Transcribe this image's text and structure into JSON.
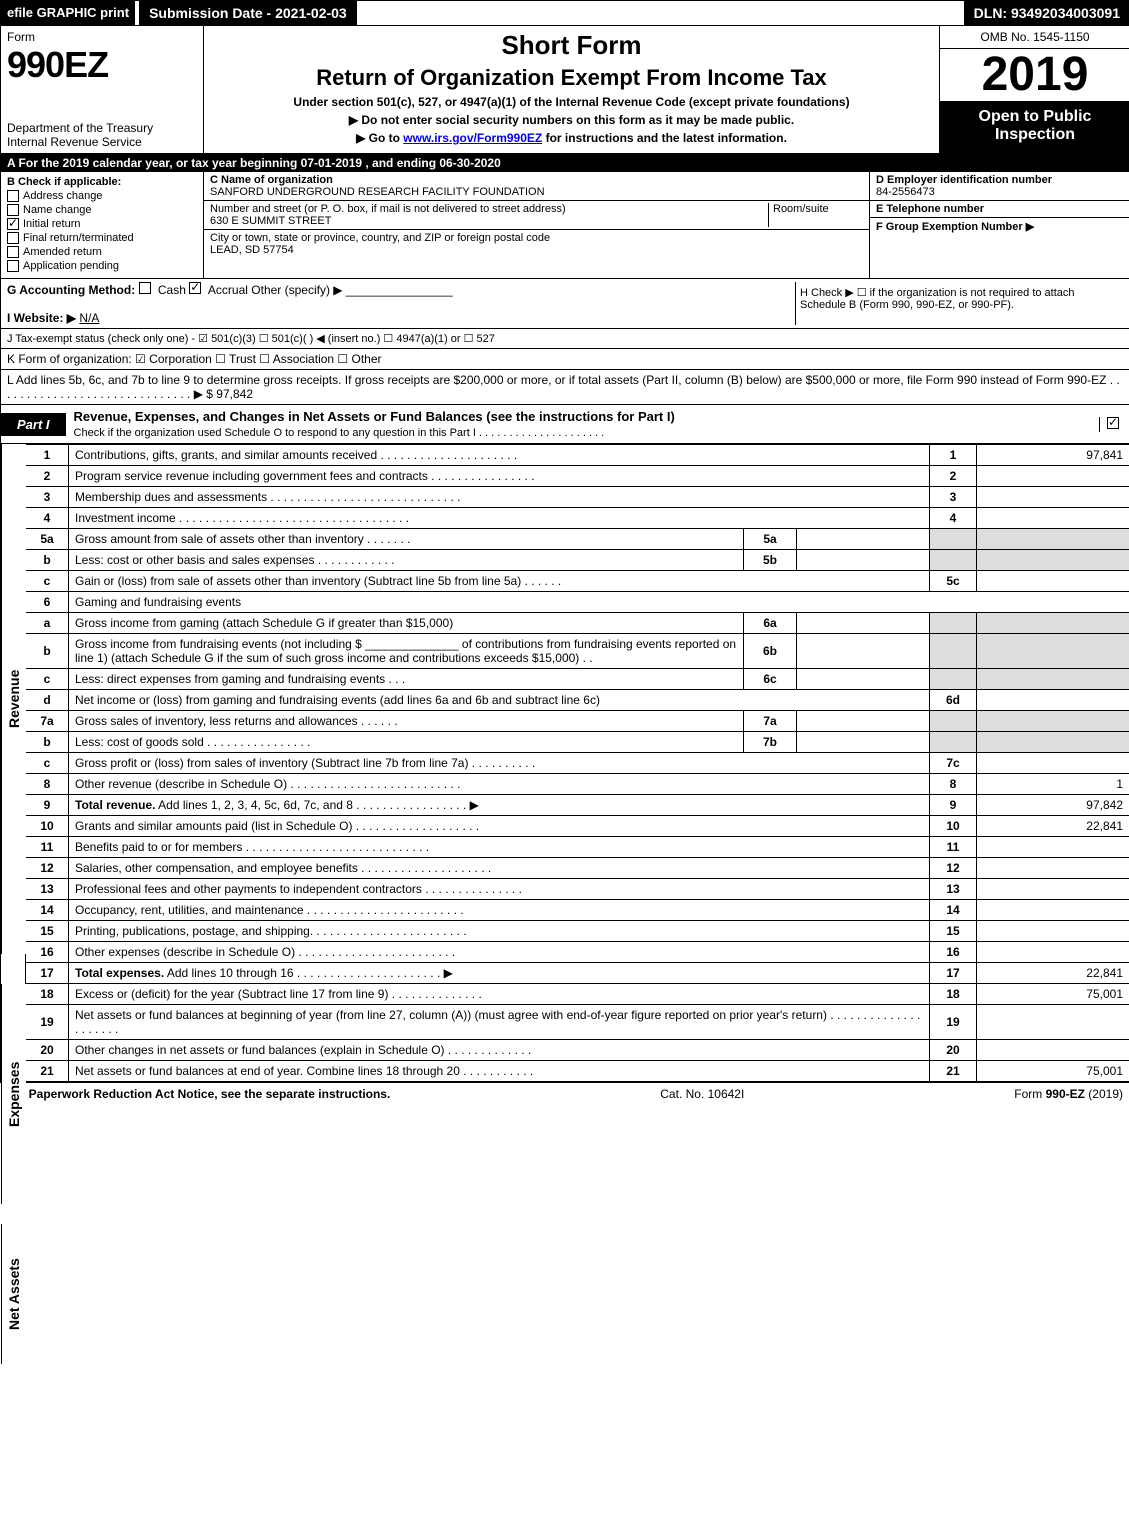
{
  "colors": {
    "black": "#000000",
    "white": "#ffffff",
    "shaded": "#dddddd",
    "link": "#0000ee"
  },
  "top_bar": {
    "efile_label": "efile GRAPHIC print",
    "submission_label": "Submission Date - 2021-02-03",
    "dln_label": "DLN: 93492034003091"
  },
  "header": {
    "form_label": "Form",
    "form_number": "990EZ",
    "dept_line1": "Department of the Treasury",
    "dept_line2": "Internal Revenue Service",
    "short_form": "Short Form",
    "return_title": "Return of Organization Exempt From Income Tax",
    "under_section": "Under section 501(c), 527, or 4947(a)(1) of the Internal Revenue Code (except private foundations)",
    "no_ssn": "▶ Do not enter social security numbers on this form as it may be made public.",
    "goto_prefix": "▶ Go to ",
    "goto_link": "www.irs.gov/Form990EZ",
    "goto_suffix": " for instructions and the latest information.",
    "omb": "OMB No. 1545-1150",
    "tax_year": "2019",
    "open_public": "Open to Public Inspection"
  },
  "section_a": "A For the 2019 calendar year, or tax year beginning 07-01-2019 , and ending 06-30-2020",
  "col_b": {
    "title": "B  Check if applicable:",
    "items": [
      {
        "label": "Address change",
        "checked": false
      },
      {
        "label": "Name change",
        "checked": false
      },
      {
        "label": "Initial return",
        "checked": true
      },
      {
        "label": "Final return/terminated",
        "checked": false
      },
      {
        "label": "Amended return",
        "checked": false
      },
      {
        "label": "Application pending",
        "checked": false
      }
    ]
  },
  "col_c": {
    "name_label": "C Name of organization",
    "name": "SANFORD UNDERGROUND RESEARCH FACILITY FOUNDATION",
    "street_label": "Number and street (or P. O. box, if mail is not delivered to street address)",
    "room_label": "Room/suite",
    "street": "630 E SUMMIT STREET",
    "city_label": "City or town, state or province, country, and ZIP or foreign postal code",
    "city": "LEAD, SD  57754"
  },
  "col_d": {
    "ein_label": "D Employer identification number",
    "ein": "84-2556473",
    "phone_label": "E Telephone number",
    "group_label": "F Group Exemption Number  ▶"
  },
  "line_g": {
    "label": "G Accounting Method:",
    "cash": "Cash",
    "accrual": "Accrual",
    "other": "Other (specify) ▶"
  },
  "line_h": "H  Check ▶  ☐  if the organization is not required to attach Schedule B (Form 990, 990-EZ, or 990-PF).",
  "line_i": {
    "label": "I Website: ▶",
    "value": "N/A"
  },
  "line_j": "J Tax-exempt status (check only one) - ☑ 501(c)(3) ☐ 501(c)(  ) ◀ (insert no.) ☐ 4947(a)(1) or ☐ 527",
  "line_k": "K Form of organization:  ☑ Corporation  ☐ Trust  ☐ Association  ☐ Other",
  "line_l": {
    "text": "L Add lines 5b, 6c, and 7b to line 9 to determine gross receipts. If gross receipts are $200,000 or more, or if total assets (Part II, column (B) below) are $500,000 or more, file Form 990 instead of Form 990-EZ . . . . . . . . . . . . . . . . . . . . . . . . . . . . . . ▶",
    "amount": "$ 97,842"
  },
  "part1": {
    "label": "Part I",
    "title": "Revenue, Expenses, and Changes in Net Assets or Fund Balances (see the instructions for Part I)",
    "check_text": "Check if the organization used Schedule O to respond to any question in this Part I . . . . . . . . . . . . . . . . . . . . ."
  },
  "vert_labels": {
    "revenue": "Revenue",
    "expenses": "Expenses",
    "net_assets": "Net Assets"
  },
  "rows": [
    {
      "n": "1",
      "desc": "Contributions, gifts, grants, and similar amounts received . . . . . . . . . . . . . . . . . . . . .",
      "ln": "1",
      "amt": "97,841"
    },
    {
      "n": "2",
      "desc": "Program service revenue including government fees and contracts . . . . . . . . . . . . . . . .",
      "ln": "2",
      "amt": ""
    },
    {
      "n": "3",
      "desc": "Membership dues and assessments . . . . . . . . . . . . . . . . . . . . . . . . . . . . .",
      "ln": "3",
      "amt": ""
    },
    {
      "n": "4",
      "desc": "Investment income . . . . . . . . . . . . . . . . . . . . . . . . . . . . . . . . . . .",
      "ln": "4",
      "amt": ""
    },
    {
      "n": "5a",
      "desc": "Gross amount from sale of assets other than inventory . . . . . . .",
      "mid": "5a",
      "midval": "",
      "shaded_right": true
    },
    {
      "n": "b",
      "desc": "Less: cost or other basis and sales expenses . . . . . . . . . . . .",
      "mid": "5b",
      "midval": "",
      "shaded_right": true
    },
    {
      "n": "c",
      "desc": "Gain or (loss) from sale of assets other than inventory (Subtract line 5b from line 5a) . . . . . .",
      "ln": "5c",
      "amt": ""
    },
    {
      "n": "6",
      "desc": "Gaming and fundraising events",
      "header_only": true
    },
    {
      "n": "a",
      "desc": "Gross income from gaming (attach Schedule G if greater than $15,000)",
      "mid": "6a",
      "midval": "",
      "shaded_right": true
    },
    {
      "n": "b",
      "desc": "Gross income from fundraising events (not including $ ______________ of contributions from fundraising events reported on line 1) (attach Schedule G if the sum of such gross income and contributions exceeds $15,000)  . .",
      "mid": "6b",
      "midval": "",
      "shaded_right": true
    },
    {
      "n": "c",
      "desc": "Less: direct expenses from gaming and fundraising events    . . .",
      "mid": "6c",
      "midval": "",
      "shaded_right": true
    },
    {
      "n": "d",
      "desc": "Net income or (loss) from gaming and fundraising events (add lines 6a and 6b and subtract line 6c)",
      "ln": "6d",
      "amt": ""
    },
    {
      "n": "7a",
      "desc": "Gross sales of inventory, less returns and allowances . . . . . .",
      "mid": "7a",
      "midval": "",
      "shaded_right": true
    },
    {
      "n": "b",
      "desc": "Less: cost of goods sold        . . . . . . . . . . . . . . . .",
      "mid": "7b",
      "midval": "",
      "shaded_right": true
    },
    {
      "n": "c",
      "desc": "Gross profit or (loss) from sales of inventory (Subtract line 7b from line 7a) . . . . . . . . . .",
      "ln": "7c",
      "amt": ""
    },
    {
      "n": "8",
      "desc": "Other revenue (describe in Schedule O) . . . . . . . . . . . . . . . . . . . . . . . . . .",
      "ln": "8",
      "amt": "1"
    },
    {
      "n": "9",
      "desc": "Total revenue. Add lines 1, 2, 3, 4, 5c, 6d, 7c, and 8  . . . . . . . . . . . . . . . . .  ▶",
      "ln": "9",
      "amt": "97,842",
      "bold": true
    },
    {
      "n": "10",
      "desc": "Grants and similar amounts paid (list in Schedule O) . . . . . . . . . . . . . . . . . . .",
      "ln": "10",
      "amt": "22,841"
    },
    {
      "n": "11",
      "desc": "Benefits paid to or for members   . . . . . . . . . . . . . . . . . . . . . . . . . . . .",
      "ln": "11",
      "amt": ""
    },
    {
      "n": "12",
      "desc": "Salaries, other compensation, and employee benefits . . . . . . . . . . . . . . . . . . . .",
      "ln": "12",
      "amt": ""
    },
    {
      "n": "13",
      "desc": "Professional fees and other payments to independent contractors . . . . . . . . . . . . . . .",
      "ln": "13",
      "amt": ""
    },
    {
      "n": "14",
      "desc": "Occupancy, rent, utilities, and maintenance . . . . . . . . . . . . . . . . . . . . . . . .",
      "ln": "14",
      "amt": ""
    },
    {
      "n": "15",
      "desc": "Printing, publications, postage, and shipping. . . . . . . . . . . . . . . . . . . . . . . .",
      "ln": "15",
      "amt": ""
    },
    {
      "n": "16",
      "desc": "Other expenses (describe in Schedule O)   . . . . . . . . . . . . . . . . . . . . . . . .",
      "ln": "16",
      "amt": ""
    },
    {
      "n": "17",
      "desc": "Total expenses. Add lines 10 through 16    . . . . . . . . . . . . . . . . . . . . . .  ▶",
      "ln": "17",
      "amt": "22,841",
      "bold": true
    },
    {
      "n": "18",
      "desc": "Excess or (deficit) for the year (Subtract line 17 from line 9)     . . . . . . . . . . . . . .",
      "ln": "18",
      "amt": "75,001"
    },
    {
      "n": "19",
      "desc": "Net assets or fund balances at beginning of year (from line 27, column (A)) (must agree with end-of-year figure reported on prior year's return) . . . . . . . . . . . . . . . . . . . . .",
      "ln": "19",
      "amt": ""
    },
    {
      "n": "20",
      "desc": "Other changes in net assets or fund balances (explain in Schedule O) . . . . . . . . . . . . .",
      "ln": "20",
      "amt": ""
    },
    {
      "n": "21",
      "desc": "Net assets or fund balances at end of year. Combine lines 18 through 20 . . . . . . . . . . .",
      "ln": "21",
      "amt": "75,001"
    }
  ],
  "footer": {
    "left": "For Paperwork Reduction Act Notice, see the separate instructions.",
    "center": "Cat. No. 10642I",
    "right": "Form 990-EZ (2019)"
  }
}
